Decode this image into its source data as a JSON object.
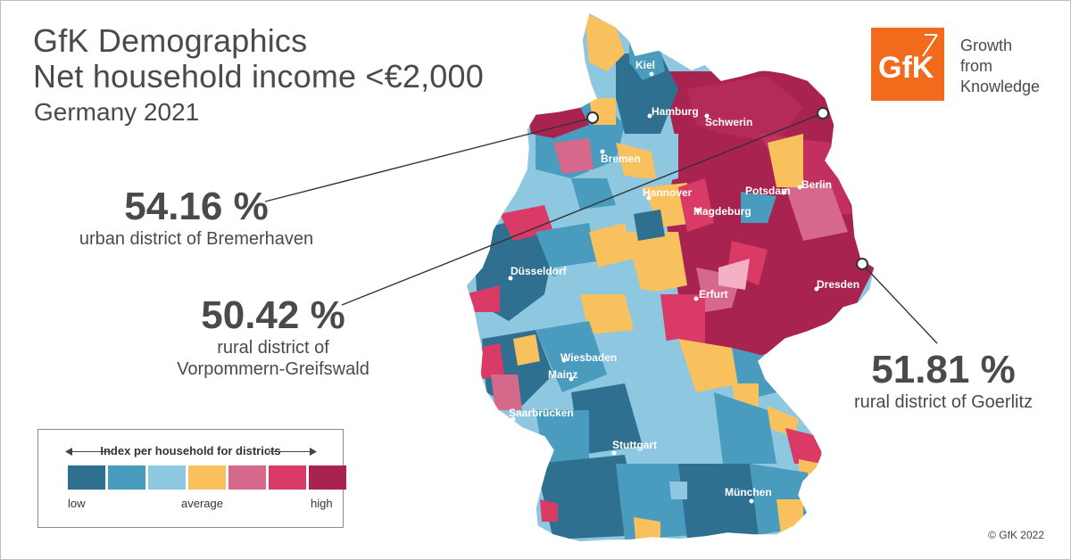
{
  "title": {
    "line1": "GfK Demographics",
    "line2": "Net household income <€2,000",
    "subtitle": "Germany 2021"
  },
  "logo": {
    "mark": "GfK",
    "tagline": [
      "Growth",
      "from",
      "Knowledge"
    ]
  },
  "callouts": [
    {
      "value": "54.16 %",
      "desc1": "urban district of Bremerhaven"
    },
    {
      "value": "50.42 %",
      "desc1": "rural district of",
      "desc2": "Vorpommern-Greifswald"
    },
    {
      "value": "51.81 %",
      "desc1": "rural district of Goerlitz"
    }
  ],
  "cities": [
    "Kiel",
    "Hamburg",
    "Schwerin",
    "Bremen",
    "Hannover",
    "Potsdam",
    "Berlin",
    "Magdeburg",
    "Düsseldorf",
    "Erfurt",
    "Dresden",
    "Wiesbaden",
    "Mainz",
    "Saarbrücken",
    "Stuttgart",
    "München"
  ],
  "legend": {
    "title": "Index per household for districts",
    "low": "low",
    "average": "average",
    "high": "high",
    "colors": [
      "#2f6f8f",
      "#4a9cbf",
      "#8ec7e0",
      "#f9c05e",
      "#d6688c",
      "#d93a66",
      "#a8234f"
    ]
  },
  "copyright": "© GfK 2022"
}
